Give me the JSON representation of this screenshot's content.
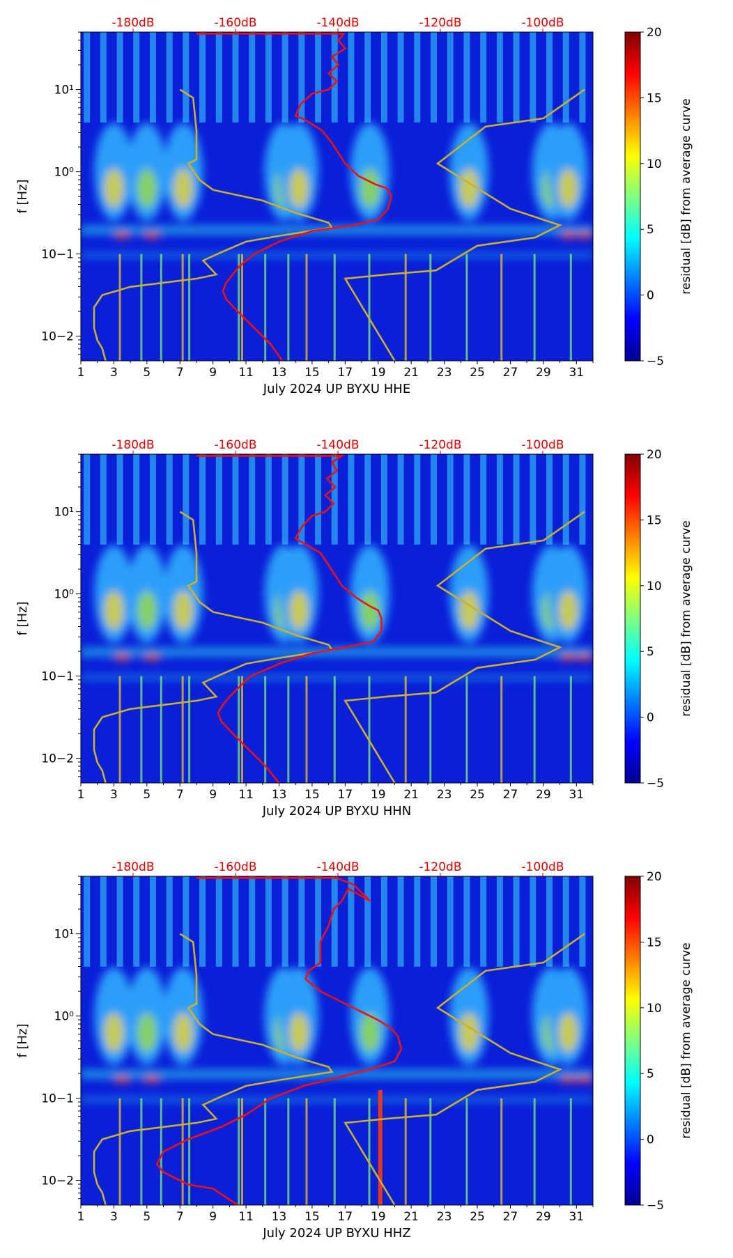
{
  "chart_data": [
    {
      "type": "heatmap",
      "channel": "HHE",
      "xlabel": "July 2024 UP BYXU  HHE",
      "ylabel": "f [Hz]",
      "colorbar_label": "residual [dB] from average curve",
      "x_ticks": [
        "1",
        "3",
        "5",
        "7",
        "9",
        "11",
        "13",
        "15",
        "17",
        "19",
        "21",
        "23",
        "25",
        "27",
        "29",
        "31"
      ],
      "xlim": [
        1,
        32
      ],
      "y_ticks": [
        "10−2",
        "10−1",
        "10⁰",
        "10¹"
      ],
      "ylim_log10": [
        -2.3,
        1.7
      ],
      "top_axis_labels": [
        "-180dB",
        "-160dB",
        "-140dB",
        "-120dB",
        "-100dB"
      ],
      "colorbar_ticks": [
        "20",
        "15",
        "10",
        "5",
        "0",
        "−5"
      ],
      "colorbar_range": [
        -5,
        20
      ],
      "red_curve": [
        [
          13.2,
          -2.3
        ],
        [
          12.5,
          -2.1
        ],
        [
          11.5,
          -1.9
        ],
        [
          10.5,
          -1.7
        ],
        [
          9.8,
          -1.55
        ],
        [
          9.6,
          -1.45
        ],
        [
          9.8,
          -1.35
        ],
        [
          10.2,
          -1.25
        ],
        [
          10.6,
          -1.15
        ],
        [
          11.5,
          -1.0
        ],
        [
          13.0,
          -0.85
        ],
        [
          15.0,
          -0.72
        ],
        [
          17.5,
          -0.65
        ],
        [
          19.0,
          -0.58
        ],
        [
          19.6,
          -0.45
        ],
        [
          19.8,
          -0.3
        ],
        [
          19.5,
          -0.2
        ],
        [
          18.8,
          -0.15
        ],
        [
          17.8,
          -0.05
        ],
        [
          17.0,
          0.1
        ],
        [
          16.2,
          0.35
        ],
        [
          15.6,
          0.5
        ],
        [
          15.0,
          0.58
        ],
        [
          14.4,
          0.65
        ],
        [
          14.0,
          0.68
        ],
        [
          14.3,
          0.82
        ],
        [
          15.0,
          0.95
        ],
        [
          16.0,
          1.0
        ],
        [
          16.5,
          1.1
        ],
        [
          16.0,
          1.2
        ],
        [
          16.6,
          1.3
        ],
        [
          16.2,
          1.4
        ],
        [
          17.0,
          1.5
        ],
        [
          16.6,
          1.6
        ],
        [
          16.9,
          1.68
        ],
        [
          15.0,
          1.68
        ],
        [
          10.0,
          1.68
        ],
        [
          8.0,
          1.68
        ]
      ],
      "yellow_curve_left": [
        [
          2.5,
          -2.3
        ],
        [
          2.3,
          -2.15
        ],
        [
          2.0,
          -2.05
        ],
        [
          1.8,
          -1.9
        ],
        [
          1.8,
          -1.65
        ],
        [
          2.3,
          -1.5
        ],
        [
          4.0,
          -1.4
        ],
        [
          6.0,
          -1.35
        ],
        [
          8.0,
          -1.3
        ],
        [
          9.2,
          -1.25
        ],
        [
          8.4,
          -1.08
        ],
        [
          9.5,
          -0.98
        ],
        [
          11.0,
          -0.85
        ],
        [
          13.0,
          -0.78
        ],
        [
          16.2,
          -0.68
        ],
        [
          16.0,
          -0.62
        ],
        [
          14.0,
          -0.5
        ],
        [
          12.0,
          -0.35
        ],
        [
          9.0,
          -0.22
        ],
        [
          8.2,
          -0.1
        ],
        [
          7.5,
          0.1
        ],
        [
          8.0,
          0.15
        ],
        [
          8.0,
          0.5
        ],
        [
          7.8,
          0.9
        ],
        [
          7.0,
          1.0
        ]
      ],
      "yellow_curve_right": [
        [
          20.0,
          -2.3
        ],
        [
          17.0,
          -1.3
        ],
        [
          19.5,
          -1.25
        ],
        [
          22.5,
          -1.2
        ],
        [
          25.0,
          -0.9
        ],
        [
          28.5,
          -0.8
        ],
        [
          30.0,
          -0.65
        ],
        [
          27.0,
          -0.45
        ],
        [
          22.6,
          0.1
        ],
        [
          25.5,
          0.55
        ],
        [
          29.0,
          0.65
        ],
        [
          31.5,
          1.0
        ]
      ]
    },
    {
      "type": "heatmap",
      "channel": "HHN",
      "xlabel": "July 2024 UP BYXU  HHN",
      "ylabel": "f [Hz]",
      "colorbar_label": "residual [dB] from average curve",
      "x_ticks": [
        "1",
        "3",
        "5",
        "7",
        "9",
        "11",
        "13",
        "15",
        "17",
        "19",
        "21",
        "23",
        "25",
        "27",
        "29",
        "31"
      ],
      "xlim": [
        1,
        32
      ],
      "y_ticks": [
        "10−2",
        "10−1",
        "10⁰",
        "10¹"
      ],
      "ylim_log10": [
        -2.3,
        1.7
      ],
      "top_axis_labels": [
        "-180dB",
        "-160dB",
        "-140dB",
        "-120dB",
        "-100dB"
      ],
      "colorbar_ticks": [
        "20",
        "15",
        "10",
        "5",
        "0",
        "−5"
      ],
      "colorbar_range": [
        -5,
        20
      ],
      "red_curve": [
        [
          13.0,
          -2.3
        ],
        [
          12.2,
          -2.1
        ],
        [
          11.2,
          -1.9
        ],
        [
          10.2,
          -1.7
        ],
        [
          9.5,
          -1.55
        ],
        [
          9.3,
          -1.45
        ],
        [
          9.6,
          -1.35
        ],
        [
          10.0,
          -1.25
        ],
        [
          10.5,
          -1.15
        ],
        [
          11.3,
          -1.0
        ],
        [
          13.0,
          -0.85
        ],
        [
          15.0,
          -0.72
        ],
        [
          17.0,
          -0.65
        ],
        [
          18.7,
          -0.58
        ],
        [
          19.2,
          -0.45
        ],
        [
          19.2,
          -0.3
        ],
        [
          19.0,
          -0.2
        ],
        [
          18.5,
          -0.15
        ],
        [
          17.7,
          -0.05
        ],
        [
          16.8,
          0.1
        ],
        [
          16.0,
          0.35
        ],
        [
          15.5,
          0.5
        ],
        [
          14.8,
          0.58
        ],
        [
          14.2,
          0.65
        ],
        [
          14.0,
          0.68
        ],
        [
          14.4,
          0.82
        ],
        [
          15.0,
          0.95
        ],
        [
          15.8,
          1.0
        ],
        [
          16.3,
          1.1
        ],
        [
          15.8,
          1.2
        ],
        [
          16.4,
          1.3
        ],
        [
          15.9,
          1.4
        ],
        [
          16.5,
          1.5
        ],
        [
          16.2,
          1.6
        ],
        [
          16.8,
          1.68
        ],
        [
          15.0,
          1.68
        ],
        [
          10.0,
          1.68
        ],
        [
          8.0,
          1.68
        ]
      ],
      "yellow_curve_left": [
        [
          2.5,
          -2.3
        ],
        [
          2.3,
          -2.15
        ],
        [
          2.0,
          -2.05
        ],
        [
          1.8,
          -1.9
        ],
        [
          1.8,
          -1.65
        ],
        [
          2.3,
          -1.5
        ],
        [
          4.0,
          -1.4
        ],
        [
          6.0,
          -1.35
        ],
        [
          8.0,
          -1.3
        ],
        [
          9.2,
          -1.25
        ],
        [
          8.4,
          -1.08
        ],
        [
          9.5,
          -0.98
        ],
        [
          11.0,
          -0.85
        ],
        [
          13.0,
          -0.78
        ],
        [
          16.2,
          -0.68
        ],
        [
          16.0,
          -0.62
        ],
        [
          14.0,
          -0.5
        ],
        [
          12.0,
          -0.35
        ],
        [
          9.0,
          -0.22
        ],
        [
          8.2,
          -0.1
        ],
        [
          7.5,
          0.1
        ],
        [
          8.0,
          0.15
        ],
        [
          8.0,
          0.5
        ],
        [
          7.8,
          0.9
        ],
        [
          7.0,
          1.0
        ]
      ],
      "yellow_curve_right": [
        [
          20.0,
          -2.3
        ],
        [
          17.0,
          -1.3
        ],
        [
          19.5,
          -1.25
        ],
        [
          22.5,
          -1.2
        ],
        [
          25.0,
          -0.9
        ],
        [
          28.5,
          -0.8
        ],
        [
          30.0,
          -0.65
        ],
        [
          27.0,
          -0.45
        ],
        [
          22.6,
          0.1
        ],
        [
          25.5,
          0.55
        ],
        [
          29.0,
          0.65
        ],
        [
          31.5,
          1.0
        ]
      ]
    },
    {
      "type": "heatmap",
      "channel": "HHZ",
      "xlabel": "July 2024 UP BYXU  HHZ",
      "ylabel": "f [Hz]",
      "colorbar_label": "residual [dB] from average curve",
      "x_ticks": [
        "1",
        "3",
        "5",
        "7",
        "9",
        "11",
        "13",
        "15",
        "17",
        "19",
        "21",
        "23",
        "25",
        "27",
        "29",
        "31"
      ],
      "xlim": [
        1,
        32
      ],
      "y_ticks": [
        "10−2",
        "10−1",
        "10⁰",
        "10¹"
      ],
      "ylim_log10": [
        -2.3,
        1.7
      ],
      "top_axis_labels": [
        "-180dB",
        "-160dB",
        "-140dB",
        "-120dB",
        "-100dB"
      ],
      "colorbar_ticks": [
        "20",
        "15",
        "10",
        "5",
        "0",
        "−5"
      ],
      "colorbar_range": [
        -5,
        20
      ],
      "red_curve": [
        [
          10.5,
          -2.3
        ],
        [
          9.0,
          -2.1
        ],
        [
          7.5,
          -2.05
        ],
        [
          6.0,
          -1.9
        ],
        [
          5.6,
          -1.8
        ],
        [
          6.0,
          -1.65
        ],
        [
          7.5,
          -1.5
        ],
        [
          9.5,
          -1.35
        ],
        [
          11.0,
          -1.2
        ],
        [
          12.5,
          -1.0
        ],
        [
          14.5,
          -0.85
        ],
        [
          16.5,
          -0.75
        ],
        [
          18.5,
          -0.65
        ],
        [
          20.0,
          -0.55
        ],
        [
          20.4,
          -0.4
        ],
        [
          20.2,
          -0.25
        ],
        [
          19.8,
          -0.15
        ],
        [
          19.0,
          -0.05
        ],
        [
          18.0,
          0.05
        ],
        [
          16.5,
          0.2
        ],
        [
          15.5,
          0.3
        ],
        [
          14.6,
          0.45
        ],
        [
          14.8,
          0.55
        ],
        [
          15.5,
          0.65
        ],
        [
          15.5,
          0.9
        ],
        [
          16.0,
          1.1
        ],
        [
          16.3,
          1.3
        ],
        [
          16.8,
          1.4
        ],
        [
          17.2,
          1.55
        ],
        [
          18.5,
          1.4
        ],
        [
          17.5,
          1.6
        ],
        [
          16.5,
          1.68
        ],
        [
          15.0,
          1.68
        ],
        [
          10.0,
          1.68
        ],
        [
          8.0,
          1.68
        ]
      ],
      "yellow_curve_left": [
        [
          2.5,
          -2.3
        ],
        [
          2.3,
          -2.15
        ],
        [
          2.0,
          -2.05
        ],
        [
          1.8,
          -1.9
        ],
        [
          1.8,
          -1.65
        ],
        [
          2.3,
          -1.5
        ],
        [
          4.0,
          -1.4
        ],
        [
          6.0,
          -1.35
        ],
        [
          8.0,
          -1.3
        ],
        [
          9.2,
          -1.25
        ],
        [
          8.4,
          -1.08
        ],
        [
          9.5,
          -0.98
        ],
        [
          11.0,
          -0.85
        ],
        [
          13.0,
          -0.78
        ],
        [
          16.2,
          -0.68
        ],
        [
          16.0,
          -0.62
        ],
        [
          14.0,
          -0.5
        ],
        [
          12.0,
          -0.35
        ],
        [
          9.0,
          -0.22
        ],
        [
          8.2,
          -0.1
        ],
        [
          7.5,
          0.1
        ],
        [
          8.0,
          0.15
        ],
        [
          8.0,
          0.5
        ],
        [
          7.8,
          0.9
        ],
        [
          7.0,
          1.0
        ]
      ],
      "yellow_curve_right": [
        [
          20.0,
          -2.3
        ],
        [
          17.0,
          -1.3
        ],
        [
          19.5,
          -1.25
        ],
        [
          22.5,
          -1.2
        ],
        [
          25.0,
          -0.9
        ],
        [
          28.5,
          -0.8
        ],
        [
          30.0,
          -0.65
        ],
        [
          27.0,
          -0.45
        ],
        [
          22.6,
          0.1
        ],
        [
          25.5,
          0.55
        ],
        [
          29.0,
          0.65
        ],
        [
          31.5,
          1.0
        ]
      ]
    }
  ]
}
